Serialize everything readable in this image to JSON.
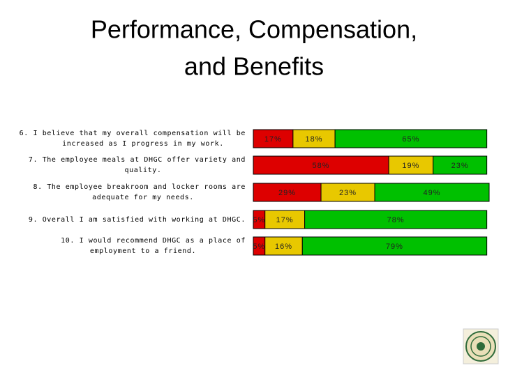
{
  "chart_data": {
    "type": "stacked_barh",
    "title": [
      "Performance, Compensation,",
      "and Benefits"
    ],
    "categories": [
      [
        "6. I believe that my overall compensation will be",
        "increased as I progress in my work."
      ],
      [
        "7. The employee meals at DHGC offer variety and",
        "quality."
      ],
      [
        "8. The employee breakroom and locker rooms are",
        "adequate for my needs."
      ],
      [
        "9. Overall I am satisfied with working at DHGC."
      ],
      [
        "10. I would recommend DHGC as a place of",
        "employment to a friend."
      ]
    ],
    "series": [
      {
        "color": "#dd0000",
        "values": [
          17,
          58,
          29,
          5,
          5
        ],
        "value_labels": [
          "17%",
          "58%",
          "29%",
          "5%",
          "5%"
        ]
      },
      {
        "color": "#e8c800",
        "values": [
          18,
          19,
          23,
          17,
          16
        ],
        "value_labels": [
          "18%",
          "19%",
          "23%",
          "17%",
          "16%"
        ]
      },
      {
        "color": "#00c000",
        "values": [
          65,
          23,
          49,
          78,
          79
        ],
        "value_labels": [
          "65%",
          "23%",
          "49%",
          "78%",
          "79%"
        ]
      }
    ]
  }
}
